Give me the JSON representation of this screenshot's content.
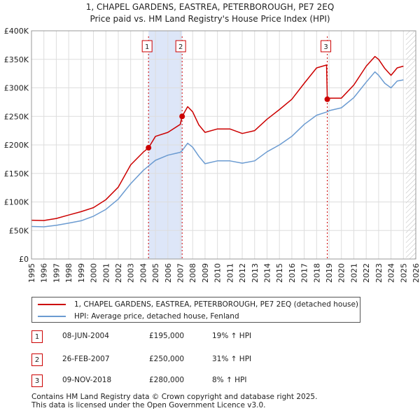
{
  "title": "1, CHAPEL GARDENS, EASTREA, PETERBOROUGH, PE7 2EQ",
  "subtitle": "Price paid vs. HM Land Registry's House Price Index (HPI)",
  "colors": {
    "property": "#cc0000",
    "hpi": "#6b9bd1",
    "shade": "#dde6f8",
    "grid": "#dddddd"
  },
  "chart_data": {
    "type": "line",
    "xlim": [
      1995,
      2026
    ],
    "ylim": [
      0,
      400000
    ],
    "x_ticks": [
      "1995",
      "1996",
      "1997",
      "1998",
      "1999",
      "2000",
      "2001",
      "2002",
      "2003",
      "2004",
      "2005",
      "2006",
      "2007",
      "2008",
      "2009",
      "2010",
      "2011",
      "2012",
      "2013",
      "2014",
      "2015",
      "2016",
      "2017",
      "2018",
      "2019",
      "2020",
      "2021",
      "2022",
      "2023",
      "2024",
      "2025",
      "2026"
    ],
    "y_ticks": [
      {
        "value": 0,
        "label": "£0"
      },
      {
        "value": 50000,
        "label": "£50K"
      },
      {
        "value": 100000,
        "label": "£100K"
      },
      {
        "value": 150000,
        "label": "£150K"
      },
      {
        "value": 200000,
        "label": "£200K"
      },
      {
        "value": 250000,
        "label": "£250K"
      },
      {
        "value": 300000,
        "label": "£300K"
      },
      {
        "value": 350000,
        "label": "£350K"
      },
      {
        "value": 400000,
        "label": "£400K"
      }
    ],
    "shaded_ranges": [
      [
        2004.44,
        2007.15
      ]
    ],
    "hatched_after": 2025.2,
    "series": [
      {
        "name": "1, CHAPEL GARDENS, EASTREA, PETERBOROUGH, PE7 2EQ (detached house)",
        "color": "#cc0000",
        "points": [
          [
            1995,
            68000
          ],
          [
            1996,
            67500
          ],
          [
            1997,
            71000
          ],
          [
            1998,
            77000
          ],
          [
            1999,
            83000
          ],
          [
            2000,
            90000
          ],
          [
            2001,
            104000
          ],
          [
            2002,
            126000
          ],
          [
            2003,
            165000
          ],
          [
            2004,
            187000
          ],
          [
            2004.44,
            195000
          ],
          [
            2005,
            215000
          ],
          [
            2006,
            222000
          ],
          [
            2007,
            236000
          ],
          [
            2007.15,
            250000
          ],
          [
            2007.6,
            267000
          ],
          [
            2008,
            258000
          ],
          [
            2008.5,
            235000
          ],
          [
            2009,
            222000
          ],
          [
            2010,
            228000
          ],
          [
            2011,
            228000
          ],
          [
            2012,
            220000
          ],
          [
            2013,
            225000
          ],
          [
            2014,
            245000
          ],
          [
            2015,
            262000
          ],
          [
            2016,
            280000
          ],
          [
            2017,
            308000
          ],
          [
            2018,
            335000
          ],
          [
            2018.8,
            340000
          ],
          [
            2018.86,
            280000
          ],
          [
            2019,
            282000
          ],
          [
            2020,
            282000
          ],
          [
            2021,
            305000
          ],
          [
            2022,
            338000
          ],
          [
            2022.7,
            355000
          ],
          [
            2023,
            350000
          ],
          [
            2023.5,
            334000
          ],
          [
            2024,
            322000
          ],
          [
            2024.5,
            335000
          ],
          [
            2025,
            338000
          ]
        ]
      },
      {
        "name": "HPI: Average price, detached house, Fenland",
        "color": "#6b9bd1",
        "points": [
          [
            1995,
            57000
          ],
          [
            1996,
            56500
          ],
          [
            1997,
            59000
          ],
          [
            1998,
            63000
          ],
          [
            1999,
            67000
          ],
          [
            2000,
            75000
          ],
          [
            2001,
            87000
          ],
          [
            2002,
            105000
          ],
          [
            2003,
            132000
          ],
          [
            2004,
            155000
          ],
          [
            2004.44,
            163000
          ],
          [
            2005,
            173000
          ],
          [
            2006,
            182000
          ],
          [
            2007,
            187000
          ],
          [
            2007.15,
            190000
          ],
          [
            2007.6,
            203000
          ],
          [
            2008,
            196000
          ],
          [
            2008.5,
            180000
          ],
          [
            2009,
            167000
          ],
          [
            2010,
            172000
          ],
          [
            2011,
            172000
          ],
          [
            2012,
            168000
          ],
          [
            2013,
            172000
          ],
          [
            2014,
            188000
          ],
          [
            2015,
            200000
          ],
          [
            2016,
            215000
          ],
          [
            2017,
            236000
          ],
          [
            2018,
            252000
          ],
          [
            2018.86,
            258000
          ],
          [
            2019,
            260000
          ],
          [
            2020,
            265000
          ],
          [
            2021,
            283000
          ],
          [
            2022,
            310000
          ],
          [
            2022.7,
            328000
          ],
          [
            2023,
            322000
          ],
          [
            2023.5,
            308000
          ],
          [
            2024,
            300000
          ],
          [
            2024.5,
            312000
          ],
          [
            2025,
            314000
          ]
        ]
      }
    ],
    "sales": [
      {
        "num": "1",
        "x": 2004.44,
        "value": 195000
      },
      {
        "num": "2",
        "x": 2007.15,
        "value": 250000
      },
      {
        "num": "3",
        "x": 2018.86,
        "value": 280000
      }
    ]
  },
  "legend": {
    "property_label": "1, CHAPEL GARDENS, EASTREA, PETERBOROUGH, PE7 2EQ (detached house)",
    "hpi_label": "HPI: Average price, detached house, Fenland"
  },
  "transactions": [
    {
      "num": "1",
      "date": "08-JUN-2004",
      "price": "£195,000",
      "hpi": "19% ↑ HPI"
    },
    {
      "num": "2",
      "date": "26-FEB-2007",
      "price": "£250,000",
      "hpi": "31% ↑ HPI"
    },
    {
      "num": "3",
      "date": "09-NOV-2018",
      "price": "£280,000",
      "hpi": "8% ↑ HPI"
    }
  ],
  "footer": {
    "line1": "Contains HM Land Registry data © Crown copyright and database right 2025.",
    "line2": "This data is licensed under the Open Government Licence v3.0."
  }
}
